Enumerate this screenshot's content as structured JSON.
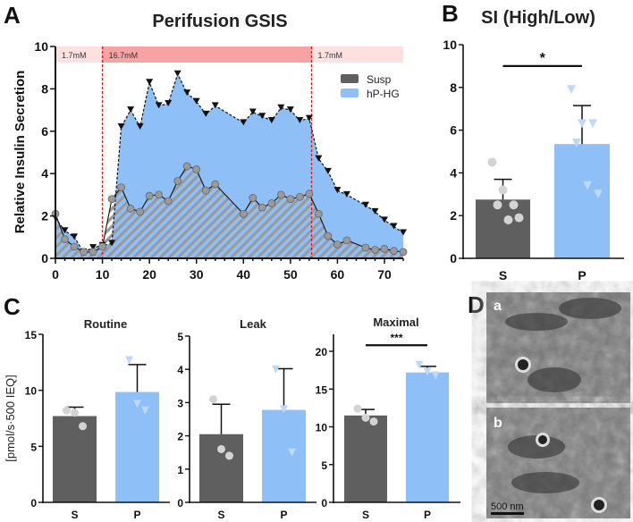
{
  "colors": {
    "susp": "#5f5f5f",
    "hp": "#8fbff7",
    "band_low": "#fde1e1",
    "band_high": "#f8a3a3",
    "marker_gray": "#9a9a9a",
    "point_light": "#d3d3d3",
    "point_blue": "#bcd9fb"
  },
  "chart_data": [
    {
      "panel": "A",
      "type": "area",
      "title": "Perifusion GSIS",
      "xlabel": "",
      "ylabel": "Relative Insulin  Secretion",
      "xlim": [
        0,
        74
      ],
      "ylim": [
        0,
        10
      ],
      "xticks": [
        0,
        10,
        20,
        30,
        40,
        50,
        60,
        70
      ],
      "yticks": [
        0,
        2,
        4,
        6,
        8,
        10
      ],
      "glucose_bands": [
        {
          "label": "1.7mM",
          "from": 0,
          "to": 10
        },
        {
          "label": "16.7mM",
          "from": 10,
          "to": 54.5
        },
        {
          "label": "1.7mM",
          "from": 54.5,
          "to": 74
        }
      ],
      "legend": {
        "position": "top-right",
        "entries": [
          "Susp",
          "hP-HG"
        ]
      },
      "series": [
        {
          "name": "Susp",
          "marker": "circle",
          "x": [
            0,
            2,
            4,
            6,
            8,
            10,
            12,
            14,
            16,
            18,
            20,
            22,
            24,
            26,
            28,
            30,
            32,
            34,
            40,
            42,
            44,
            46,
            48,
            50,
            52,
            54,
            56,
            58,
            60,
            62,
            66,
            68,
            70,
            72,
            74
          ],
          "y": [
            2.1,
            0.9,
            0.55,
            0.3,
            0.3,
            0.55,
            2.8,
            3.35,
            2.35,
            2.2,
            2.95,
            3.0,
            2.7,
            3.65,
            4.35,
            4.2,
            3.2,
            3.5,
            2.1,
            2.85,
            2.4,
            2.6,
            3.0,
            2.8,
            2.9,
            3.05,
            2.1,
            1.05,
            0.65,
            0.85,
            0.5,
            0.4,
            0.45,
            0.35,
            0.3
          ]
        },
        {
          "name": "hP-HG",
          "marker": "triangle-down",
          "x": [
            0,
            2,
            4,
            6,
            8,
            10,
            12,
            14,
            16,
            18,
            20,
            22,
            24,
            26,
            28,
            30,
            32,
            34,
            40,
            42,
            44,
            46,
            48,
            50,
            52,
            54,
            56,
            58,
            60,
            62,
            66,
            68,
            70,
            72,
            74
          ],
          "y": [
            1.9,
            1.3,
            1.0,
            0.3,
            0.5,
            0.6,
            0.7,
            6.2,
            7.0,
            6.2,
            8.3,
            7.2,
            7.3,
            8.7,
            7.8,
            7.4,
            6.8,
            7.2,
            6.4,
            6.9,
            6.7,
            6.5,
            7.1,
            7.0,
            6.5,
            6.6,
            4.7,
            4.1,
            3.2,
            3.0,
            2.5,
            2.2,
            1.8,
            1.5,
            1.2
          ]
        }
      ]
    },
    {
      "panel": "B",
      "type": "bar",
      "title": "SI (High/Low)",
      "categories": [
        "S",
        "P"
      ],
      "ylim": [
        0,
        10
      ],
      "yticks": [
        0,
        2,
        4,
        6,
        8,
        10
      ],
      "values": [
        2.75,
        5.35
      ],
      "error": [
        0.95,
        1.8
      ],
      "points": [
        [
          4.5,
          3.2,
          2.5,
          2.5,
          1.8,
          1.9
        ],
        [
          7.9,
          6.3,
          6.3,
          5.4,
          3.4,
          3.0
        ]
      ],
      "significance": "*",
      "sig_level": 9
    },
    {
      "panel": "C",
      "type": "bar",
      "title": "Routine",
      "ylabel": "[pmol/s·500 IEQ]",
      "categories": [
        "S",
        "P"
      ],
      "ylim": [
        0,
        15
      ],
      "yticks": [
        0,
        5,
        10,
        15
      ],
      "values": [
        7.7,
        9.85
      ],
      "error": [
        0.8,
        2.45
      ],
      "points": [
        [
          8.2,
          8.0,
          6.8
        ],
        [
          12.7,
          8.8,
          8.2
        ]
      ]
    },
    {
      "panel": "C",
      "type": "bar",
      "title": "Leak",
      "categories": [
        "S",
        "P"
      ],
      "ylim": [
        0,
        5
      ],
      "yticks": [
        0,
        1,
        2,
        3,
        4,
        5
      ],
      "values": [
        2.05,
        2.78
      ],
      "error": [
        0.9,
        1.24
      ],
      "points": [
        [
          3.1,
          1.6,
          1.4
        ],
        [
          4.0,
          2.8,
          1.5
        ]
      ]
    },
    {
      "panel": "C",
      "type": "bar",
      "title": "Maximal",
      "categories": [
        "S",
        "P"
      ],
      "ylim": [
        0,
        22
      ],
      "yticks": [
        0,
        5,
        10,
        15,
        20
      ],
      "values": [
        11.5,
        17.2
      ],
      "error": [
        0.8,
        0.8
      ],
      "points": [
        [
          12.4,
          11.2,
          10.7
        ],
        [
          18.2,
          17.3,
          16.8
        ]
      ],
      "significance": "***",
      "sig_level": 20.8
    }
  ],
  "panel_d": {
    "letter": "D",
    "images": [
      {
        "label": "a"
      },
      {
        "label": "b"
      }
    ],
    "scalebar": "500 nm"
  },
  "letters": {
    "a": "A",
    "b": "B",
    "c": "C"
  }
}
